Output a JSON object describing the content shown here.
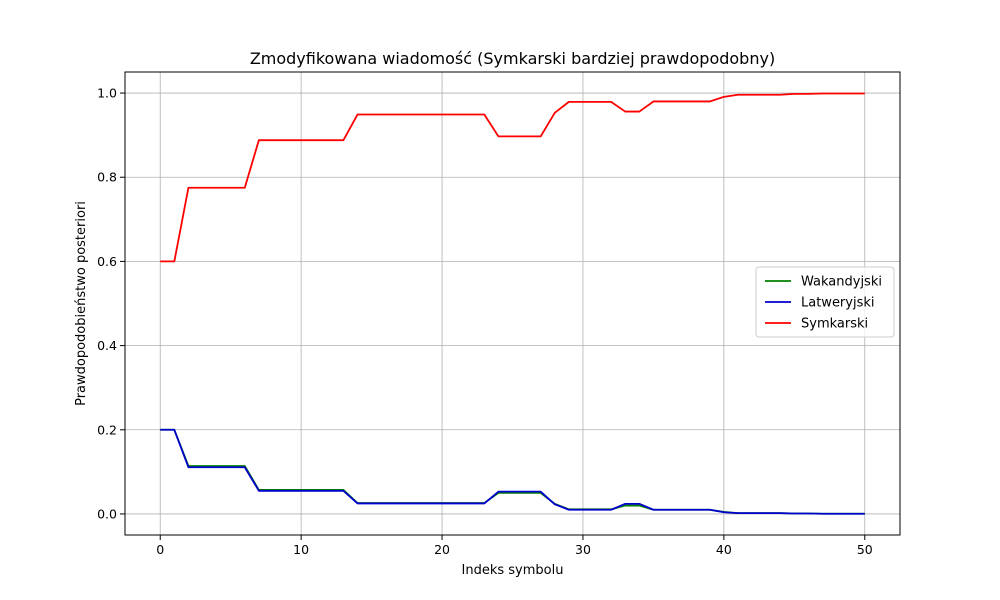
{
  "chart_data": {
    "type": "line",
    "title": "Zmodyfikowana wiadomość (Symkarski bardziej prawdopodobny)",
    "xlabel": "Indeks symbolu",
    "ylabel": "Prawdopodobieństwo posteriori",
    "xlim": [
      -2.5,
      52.5
    ],
    "ylim": [
      -0.05,
      1.05
    ],
    "xticks": [
      0,
      10,
      20,
      30,
      40,
      50
    ],
    "yticks": [
      0.0,
      0.2,
      0.4,
      0.6,
      0.8,
      1.0
    ],
    "xtick_labels": [
      "0",
      "10",
      "20",
      "30",
      "40",
      "50"
    ],
    "ytick_labels": [
      "0.0",
      "0.2",
      "0.4",
      "0.6",
      "0.8",
      "1.0"
    ],
    "grid": true,
    "legend_position": "center-right",
    "x": [
      0,
      1,
      2,
      3,
      4,
      5,
      6,
      7,
      8,
      9,
      10,
      11,
      12,
      13,
      14,
      15,
      16,
      17,
      18,
      19,
      20,
      21,
      22,
      23,
      24,
      25,
      26,
      27,
      28,
      29,
      30,
      31,
      32,
      33,
      34,
      35,
      36,
      37,
      38,
      39,
      40,
      41,
      42,
      43,
      44,
      45,
      46,
      47,
      48,
      49,
      50
    ],
    "series": [
      {
        "name": "Wakandyjski",
        "color": "#008000",
        "values": [
          0.2,
          0.2,
          0.114,
          0.114,
          0.114,
          0.114,
          0.114,
          0.057,
          0.057,
          0.057,
          0.057,
          0.057,
          0.057,
          0.057,
          0.026,
          0.026,
          0.026,
          0.026,
          0.026,
          0.026,
          0.026,
          0.026,
          0.026,
          0.026,
          0.05,
          0.05,
          0.05,
          0.05,
          0.024,
          0.011,
          0.011,
          0.011,
          0.011,
          0.02,
          0.02,
          0.01,
          0.01,
          0.01,
          0.01,
          0.01,
          0.005,
          0.002,
          0.002,
          0.002,
          0.002,
          0.001,
          0.001,
          0.0005,
          0.0005,
          0.0005,
          0.0005
        ]
      },
      {
        "name": "Latweryjski",
        "color": "#0000cc",
        "values": [
          0.2,
          0.2,
          0.111,
          0.111,
          0.111,
          0.111,
          0.111,
          0.055,
          0.055,
          0.055,
          0.055,
          0.055,
          0.055,
          0.055,
          0.025,
          0.025,
          0.025,
          0.025,
          0.025,
          0.025,
          0.025,
          0.025,
          0.025,
          0.025,
          0.053,
          0.053,
          0.053,
          0.053,
          0.023,
          0.01,
          0.01,
          0.01,
          0.01,
          0.024,
          0.024,
          0.01,
          0.01,
          0.01,
          0.01,
          0.01,
          0.004,
          0.002,
          0.002,
          0.002,
          0.002,
          0.001,
          0.001,
          0.0005,
          0.0005,
          0.0005,
          0.0005
        ]
      },
      {
        "name": "Symkarski",
        "color": "#ff0000",
        "values": [
          0.6,
          0.6,
          0.775,
          0.775,
          0.775,
          0.775,
          0.775,
          0.888,
          0.888,
          0.888,
          0.888,
          0.888,
          0.888,
          0.888,
          0.949,
          0.949,
          0.949,
          0.949,
          0.949,
          0.949,
          0.949,
          0.949,
          0.949,
          0.949,
          0.897,
          0.897,
          0.897,
          0.897,
          0.953,
          0.979,
          0.979,
          0.979,
          0.979,
          0.956,
          0.956,
          0.98,
          0.98,
          0.98,
          0.98,
          0.98,
          0.991,
          0.996,
          0.996,
          0.996,
          0.996,
          0.998,
          0.998,
          0.999,
          0.999,
          0.999,
          0.999
        ]
      }
    ]
  }
}
